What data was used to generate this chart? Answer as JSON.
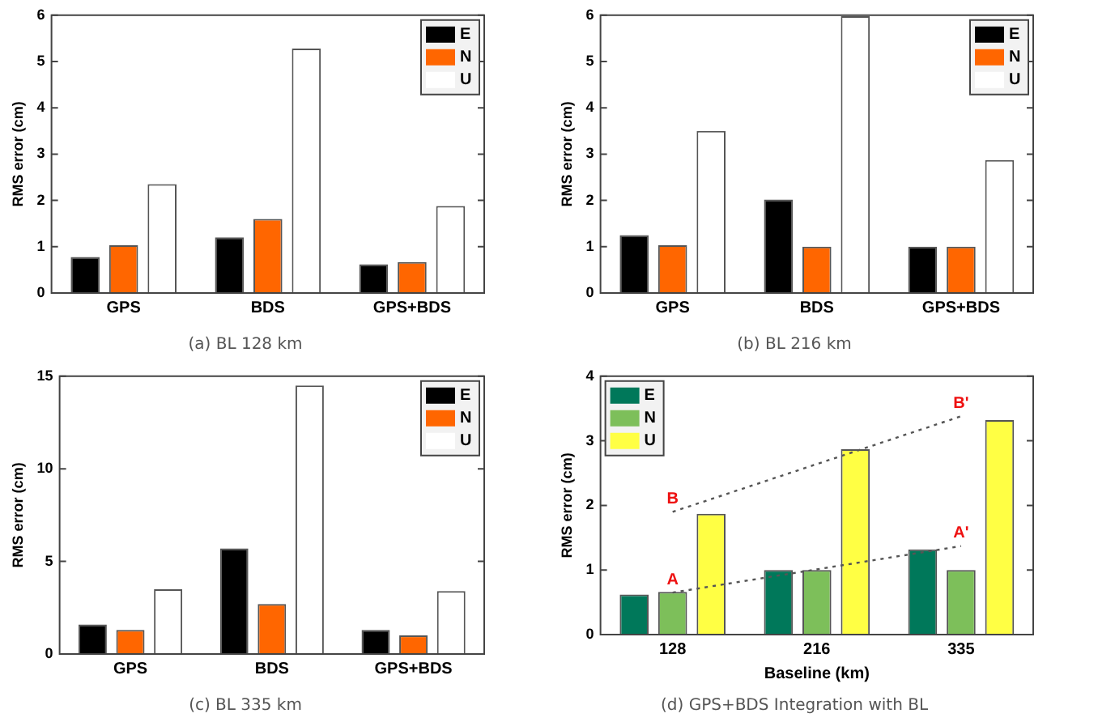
{
  "chart_data": [
    {
      "type": "bar",
      "title": "(a) BL 128 km",
      "ylabel": "RMS error (cm)",
      "categories": [
        "GPS",
        "BDS",
        "GPS+BDS"
      ],
      "series": [
        {
          "name": "E",
          "color": "#000000",
          "values": [
            0.78,
            1.2,
            0.62
          ]
        },
        {
          "name": "N",
          "color": "#ff6600",
          "values": [
            1.03,
            1.6,
            0.67
          ]
        },
        {
          "name": "U",
          "color": "#ffffff",
          "values": [
            2.35,
            5.28,
            1.88
          ]
        }
      ],
      "ylim": [
        0,
        6
      ],
      "yticks": [
        0,
        1,
        2,
        3,
        4,
        5,
        6
      ],
      "grid": false,
      "legend": "top right"
    },
    {
      "type": "bar",
      "title": "(b) BL 216 km",
      "ylabel": "RMS error (cm)",
      "categories": [
        "GPS",
        "BDS",
        "GPS+BDS"
      ],
      "series": [
        {
          "name": "E",
          "color": "#000000",
          "values": [
            1.25,
            2.02,
            1.0
          ]
        },
        {
          "name": "N",
          "color": "#ff6600",
          "values": [
            1.03,
            1.0,
            1.0
          ]
        },
        {
          "name": "U",
          "color": "#ffffff",
          "values": [
            3.5,
            5.98,
            2.87
          ]
        }
      ],
      "ylim": [
        0,
        6
      ],
      "yticks": [
        0,
        1,
        2,
        3,
        4,
        5,
        6
      ],
      "grid": false,
      "legend": "top right"
    },
    {
      "type": "bar",
      "title": "(c) BL 335 km",
      "ylabel": "RMS error (cm)",
      "categories": [
        "GPS",
        "BDS",
        "GPS+BDS"
      ],
      "series": [
        {
          "name": "E",
          "color": "#000000",
          "values": [
            1.6,
            5.7,
            1.3
          ]
        },
        {
          "name": "N",
          "color": "#ff6600",
          "values": [
            1.3,
            2.7,
            1.0
          ]
        },
        {
          "name": "U",
          "color": "#ffffff",
          "values": [
            3.5,
            14.5,
            3.4
          ]
        }
      ],
      "ylim": [
        0,
        15
      ],
      "yticks": [
        0,
        5,
        10,
        15
      ],
      "grid": false,
      "legend": "top right"
    },
    {
      "type": "bar",
      "title": "(d) GPS+BDS Integration with BL",
      "xlabel": "Baseline (km)",
      "ylabel": "RMS error (cm)",
      "categories": [
        "128",
        "216",
        "335"
      ],
      "series": [
        {
          "name": "E",
          "color": "#00785a",
          "values": [
            0.62,
            1.0,
            1.32
          ]
        },
        {
          "name": "N",
          "color": "#7dbf5a",
          "values": [
            0.66,
            1.0,
            1.0
          ]
        },
        {
          "name": "U",
          "color": "#ffff44",
          "values": [
            1.87,
            2.87,
            3.32
          ]
        },
        {
          "type": "line",
          "color": "#555555",
          "line_style": "dotted",
          "x": [
            "128",
            "335"
          ],
          "values": [
            0.65,
            1.37
          ]
        },
        {
          "type": "line",
          "color": "#555555",
          "line_style": "dotted",
          "x": [
            "128",
            "335"
          ],
          "values": [
            1.9,
            3.38
          ]
        }
      ],
      "annotations": [
        {
          "text": "A",
          "x": "128",
          "y": 0.65
        },
        {
          "text": "B",
          "x": "128",
          "y": 1.9
        },
        {
          "text": "A'",
          "x": "335",
          "y": 1.37
        },
        {
          "text": "B'",
          "x": "335",
          "y": 3.38
        }
      ],
      "ylim": [
        0,
        4
      ],
      "yticks": [
        0,
        1,
        2,
        3,
        4
      ],
      "grid": false,
      "legend": "top left"
    }
  ]
}
